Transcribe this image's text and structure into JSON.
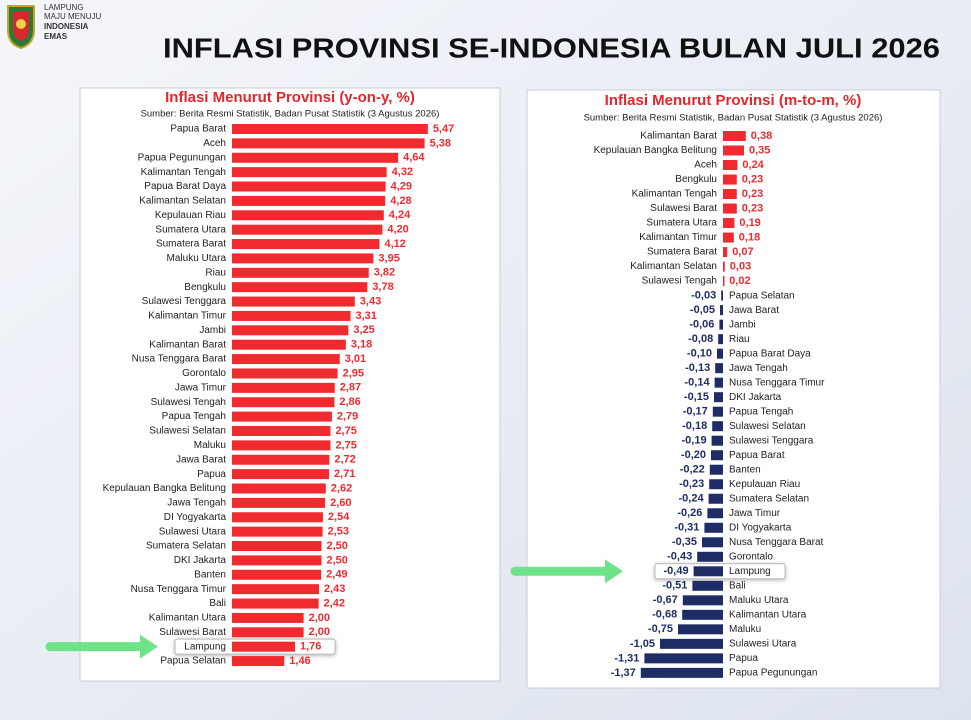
{
  "header": {
    "logo_lines": [
      "LAMPUNG",
      "MAJU MENUJU",
      "INDONESIA",
      "EMAS"
    ],
    "title": "INFLASI PROVINSI  SE-INDONESIA BULAN JULI 2026"
  },
  "chart_data": [
    {
      "type": "bar",
      "title": "Inflasi Menurut Provinsi (y-on-y, %)",
      "subtitle": "Sumber: Berita Resmi Statistik, Badan Pusat Statistik (3 Agustus 2026)",
      "categories": [
        "Papua Barat",
        "Aceh",
        "Papua Pegunungan",
        "Kalimantan Tengah",
        "Papua Barat Daya",
        "Kalimantan Selatan",
        "Kepulauan Riau",
        "Sumatera Utara",
        "Sumatera Barat",
        "Maluku Utara",
        "Riau",
        "Bengkulu",
        "Sulawesi Tenggara",
        "Kalimantan Timur",
        "Jambi",
        "Kalimantan Barat",
        "Nusa Tenggara Barat",
        "Gorontalo",
        "Jawa Timur",
        "Sulawesi Tengah",
        "Papua Tengah",
        "Sulawesi Selatan",
        "Maluku",
        "Jawa Barat",
        "Papua",
        "Kepulauan Bangka Belitung",
        "Jawa Tengah",
        "DI Yogyakarta",
        "Sulawesi Utara",
        "Sumatera Selatan",
        "DKI Jakarta",
        "Banten",
        "Nusa Tenggara Timur",
        "Bali",
        "Kalimantan Utara",
        "Sulawesi Barat",
        "Lampung",
        "Papua Selatan"
      ],
      "values": [
        5.47,
        5.38,
        4.64,
        4.32,
        4.29,
        4.28,
        4.24,
        4.2,
        4.12,
        3.95,
        3.82,
        3.78,
        3.43,
        3.31,
        3.25,
        3.18,
        3.01,
        2.95,
        2.87,
        2.86,
        2.79,
        2.75,
        2.75,
        2.72,
        2.71,
        2.62,
        2.6,
        2.54,
        2.53,
        2.5,
        2.5,
        2.49,
        2.43,
        2.42,
        2.0,
        2.0,
        1.76,
        1.46
      ],
      "value_labels": [
        "5,47",
        "5,38",
        "4,64",
        "4,32",
        "4,29",
        "4,28",
        "4,24",
        "4,20",
        "4,12",
        "3,95",
        "3,82",
        "3,78",
        "3,43",
        "3,31",
        "3,25",
        "3,18",
        "3,01",
        "2,95",
        "2,87",
        "2,86",
        "2,79",
        "2,75",
        "2,75",
        "2,72",
        "2,71",
        "2,62",
        "2,60",
        "2,54",
        "2,53",
        "2,50",
        "2,50",
        "2,49",
        "2,43",
        "2,42",
        "2,00",
        "2,00",
        "1,76",
        "1,46"
      ],
      "color": "#f02a2f",
      "negative_color": "#1f2d66"
    },
    {
      "type": "bar",
      "title": "Inflasi Menurut Provinsi (m-to-m, %)",
      "subtitle": "Sumber: Berita Resmi Statistik, Badan Pusat Statistik (3 Agustus 2026)",
      "categories": [
        "Kalimantan Barat",
        "Kepulauan Bangka Belitung",
        "Aceh",
        "Bengkulu",
        "Kalimantan Tengah",
        "Sulawesi Barat",
        "Sumatera Utara",
        "Kalimantan Timur",
        "Sumatera Barat",
        "Kalimantan Selatan",
        "Sulawesi Tengah",
        "Papua Selatan",
        "Jawa Barat",
        "Jambi",
        "Riau",
        "Papua Barat Daya",
        "Jawa Tengah",
        "Nusa Tenggara Timur",
        "DKI Jakarta",
        "Papua Tengah",
        "Sulawesi Selatan",
        "Sulawesi Tenggara",
        "Papua Barat",
        "Banten",
        "Kepulauan Riau",
        "Sumatera Selatan",
        "Jawa Timur",
        "DI Yogyakarta",
        "Nusa Tenggara Barat",
        "Gorontalo",
        "Lampung",
        "Bali",
        "Maluku Utara",
        "Kalimantan Utara",
        "Maluku",
        "Sulawesi Utara",
        "Papua",
        "Papua Pegunungan"
      ],
      "values": [
        0.38,
        0.35,
        0.24,
        0.23,
        0.23,
        0.23,
        0.19,
        0.18,
        0.07,
        0.03,
        0.02,
        -0.03,
        -0.05,
        -0.06,
        -0.08,
        -0.1,
        -0.13,
        -0.14,
        -0.15,
        -0.17,
        -0.18,
        -0.19,
        -0.2,
        -0.22,
        -0.23,
        -0.24,
        -0.26,
        -0.31,
        -0.35,
        -0.43,
        -0.49,
        -0.51,
        -0.67,
        -0.68,
        -0.75,
        -1.05,
        -1.31,
        -1.37
      ],
      "value_labels": [
        "0,38",
        "0,35",
        "0,24",
        "0,23",
        "0,23",
        "0,23",
        "0,19",
        "0,18",
        "0,07",
        "0,03",
        "0,02",
        "-0,03",
        "-0,05",
        "-0,06",
        "-0,08",
        "-0,10",
        "-0,13",
        "-0,14",
        "-0,15",
        "-0,17",
        "-0,18",
        "-0,19",
        "-0,20",
        "-0,22",
        "-0,23",
        "-0,24",
        "-0,26",
        "-0,31",
        "-0,35",
        "-0,43",
        "-0,49",
        "-0,51",
        "-0,67",
        "-0,68",
        "-0,75",
        "-1,05",
        "-1,31",
        "-1,37"
      ],
      "color": "#f02a2f",
      "negative_color": "#1f2d66"
    }
  ]
}
